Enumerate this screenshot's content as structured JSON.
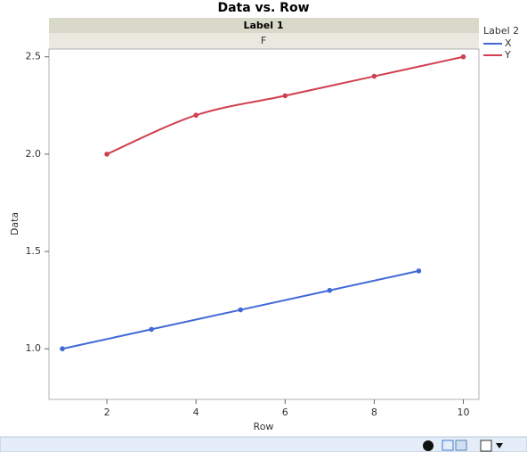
{
  "chart_data": {
    "type": "line",
    "title": "Data vs. Row",
    "group_title": "Label 1",
    "group_value": "F",
    "legend_title": "Label 2",
    "x_label": "Row",
    "y_label": "Data",
    "series": [
      {
        "name": "X",
        "color": "#4169d6",
        "x": [
          1,
          3,
          5,
          7,
          9
        ],
        "values": [
          1.0,
          1.1,
          1.2,
          1.3,
          1.4
        ],
        "smooth": false
      },
      {
        "name": "Y",
        "color": "#d0404f",
        "x": [
          2,
          4,
          6,
          8,
          10
        ],
        "values": [
          2.0,
          2.2,
          2.3,
          2.4,
          2.5
        ],
        "smooth": true
      }
    ],
    "xlim": [
      0.7,
      10.35
    ],
    "xticks": [
      2,
      4,
      6,
      8,
      10
    ],
    "ylim": [
      0.74,
      2.54
    ],
    "yticks": [
      {
        "value": 1.0,
        "label": "1.0"
      },
      {
        "value": 1.5,
        "label": "1.5"
      },
      {
        "value": 2.0,
        "label": "2.0"
      },
      {
        "value": 2.5,
        "label": "2.5"
      }
    ],
    "grid": false
  }
}
